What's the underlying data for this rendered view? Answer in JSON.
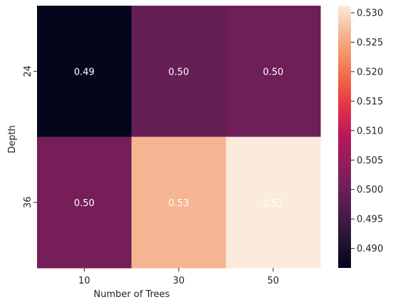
{
  "chart_data": {
    "type": "heatmap",
    "title": "",
    "xlabel": "Number of Trees",
    "ylabel": "Depth",
    "x_categories": [
      "10",
      "30",
      "50"
    ],
    "y_categories": [
      "24",
      "36"
    ],
    "values": [
      [
        0.4867,
        0.4995,
        0.5005
      ],
      [
        0.5012,
        0.5264,
        0.5312
      ]
    ],
    "annotations": [
      [
        "0.49",
        "0.50",
        "0.50"
      ],
      [
        "0.50",
        "0.53",
        "0.53"
      ]
    ],
    "annotation_color": "#ffffff",
    "colormap": "rocket",
    "colorbar": {
      "range": [
        0.4867,
        0.5312
      ],
      "ticks": [
        "0.490",
        "0.495",
        "0.500",
        "0.505",
        "0.510",
        "0.515",
        "0.520",
        "0.525",
        "0.530"
      ]
    },
    "grid": false
  }
}
